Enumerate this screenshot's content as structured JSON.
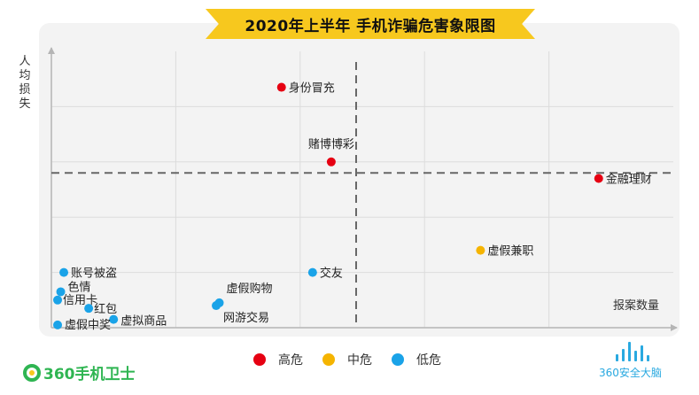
{
  "title": "2020年上半年 手机诈骗危害象限图",
  "chart_data": {
    "type": "scatter",
    "title": "2020年上半年 手机诈骗危害象限图",
    "xlabel": "报案数量",
    "ylabel": "人均损失",
    "xlim": [
      0,
      100
    ],
    "ylim": [
      0,
      100
    ],
    "grid": true,
    "legend_position": "bottom",
    "quadrant_divider": {
      "x": 49,
      "y": 56
    },
    "series": [
      {
        "name": "高危",
        "color": "#e60012",
        "points": [
          {
            "label": "身份冒充",
            "x": 37,
            "y": 87
          },
          {
            "label": "赌博博彩",
            "x": 45,
            "y": 60
          },
          {
            "label": "金融理财",
            "x": 88,
            "y": 54
          }
        ]
      },
      {
        "name": "中危",
        "color": "#f5b400",
        "points": [
          {
            "label": "虚假兼职",
            "x": 69,
            "y": 28
          }
        ]
      },
      {
        "name": "低危",
        "color": "#1aa3e8",
        "points": [
          {
            "label": "交友",
            "x": 42,
            "y": 20
          },
          {
            "label": "虚假购物",
            "x": 27,
            "y": 9
          },
          {
            "label": "网游交易",
            "x": 26.5,
            "y": 8
          },
          {
            "label": "账号被盗",
            "x": 2,
            "y": 20
          },
          {
            "label": "色情",
            "x": 1.5,
            "y": 13
          },
          {
            "label": "信用卡",
            "x": 1,
            "y": 10
          },
          {
            "label": "红包",
            "x": 6,
            "y": 7
          },
          {
            "label": "虚拟商品",
            "x": 10,
            "y": 3
          },
          {
            "label": "虚假中奖",
            "x": 1,
            "y": 1
          }
        ]
      }
    ]
  },
  "legend": [
    {
      "label": "高危",
      "color": "#e60012"
    },
    {
      "label": "中危",
      "color": "#f5b400"
    },
    {
      "label": "低危",
      "color": "#1aa3e8"
    }
  ],
  "branding": {
    "left_logo": "360手机卫士",
    "right_logo": "360安全大脑"
  }
}
